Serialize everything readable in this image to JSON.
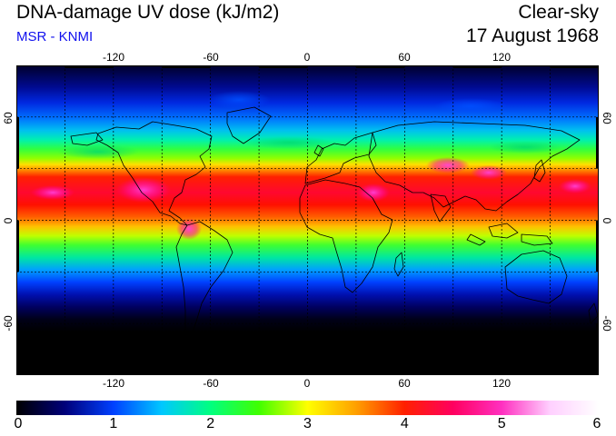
{
  "header": {
    "title": "DNA-damage UV dose (kJ/m2)",
    "subtitle": "MSR - KNMI",
    "condition": "Clear-sky",
    "date": "17 August 1968"
  },
  "map": {
    "projection": "equirectangular",
    "lon_range": [
      -180,
      180
    ],
    "lat_range": [
      -90,
      90
    ],
    "grid_spacing_deg": 30,
    "grid_style": "dotted",
    "lon_ticks": [
      "-120",
      "-60",
      "0",
      "60",
      "120"
    ],
    "lat_ticks": [
      "60",
      "0",
      "-60"
    ],
    "lon_tick_values": [
      -120,
      -60,
      0,
      60,
      120
    ],
    "lat_tick_values": [
      60,
      0,
      -60
    ],
    "night_region_south_of_lat": -75,
    "peak_band_lat": [
      5,
      35
    ]
  },
  "colorbar": {
    "min": 0,
    "max": 6,
    "labels": [
      "0",
      "1",
      "2",
      "3",
      "4",
      "5",
      "6"
    ],
    "stops": [
      "#000000",
      "#00007a",
      "#0040ff",
      "#00c8ff",
      "#00ff80",
      "#40ff00",
      "#ffff00",
      "#ffa000",
      "#ff2000",
      "#ff0060",
      "#ff30c0",
      "#ffd0ff",
      "#ffffff"
    ]
  },
  "colors": {
    "subtitle": "#1010ee",
    "coastline": "#000000",
    "grid": "#000000"
  }
}
